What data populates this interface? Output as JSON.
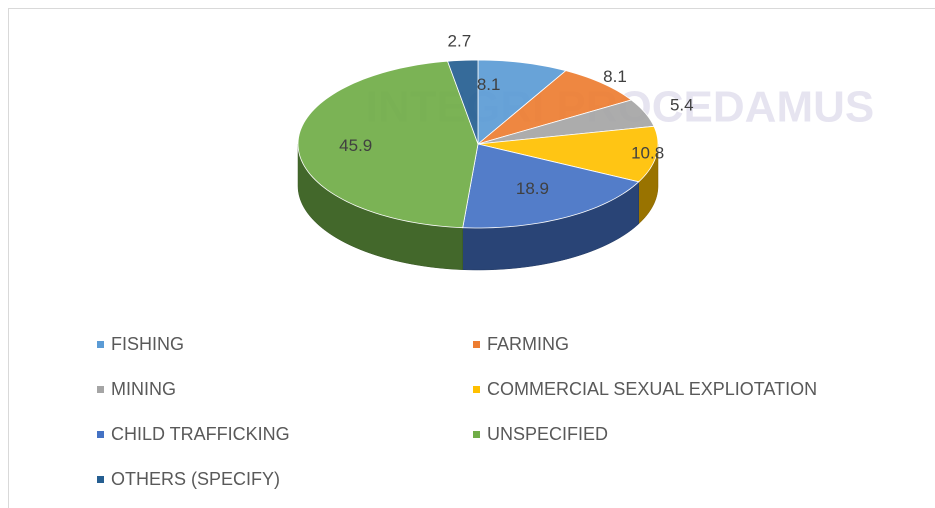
{
  "chart_data": {
    "type": "pie",
    "watermark": "INTEGRI PROCEDAMUS",
    "categories": [
      "FISHING",
      "FARMING",
      "MINING",
      "COMMERCIAL SEXUAL EXPLIOTATION",
      "CHILD TRAFFICKING",
      "UNSPECIFIED",
      "OTHERS (SPECIFY)"
    ],
    "values": [
      8.1,
      8.1,
      5.4,
      10.8,
      18.9,
      45.9,
      2.7
    ],
    "colors": [
      "#5b9bd5",
      "#ed7d31",
      "#a5a5a5",
      "#ffc000",
      "#4472c4",
      "#70ad47",
      "#255e91"
    ],
    "legend": "bottom"
  }
}
